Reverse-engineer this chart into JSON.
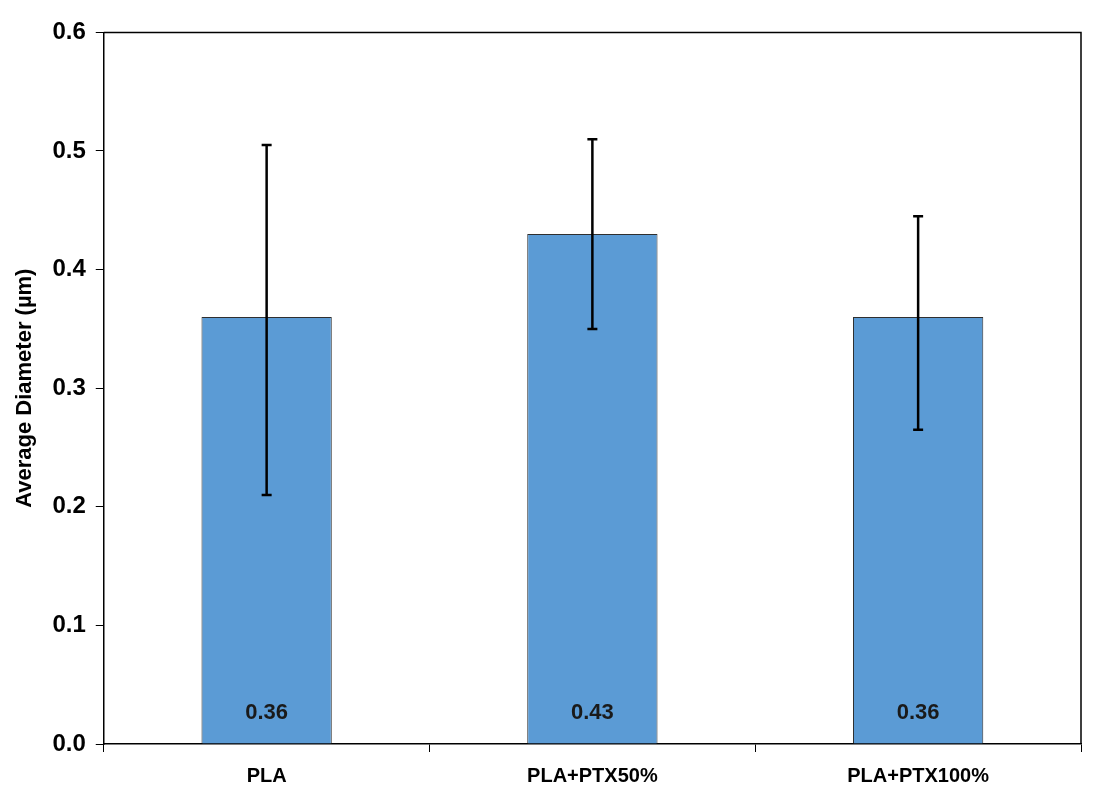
{
  "chart_data": {
    "type": "bar",
    "ylabel": "Average Diameter (µm)",
    "categories": [
      "PLA",
      "PLA+PTX50%",
      "PLA+PTX100%"
    ],
    "values": [
      0.36,
      0.43,
      0.36
    ],
    "errors": [
      [
        0.21,
        0.505
      ],
      [
        0.35,
        0.51
      ],
      [
        0.265,
        0.445
      ]
    ],
    "color": "#5b9bd5",
    "ylim": [
      0,
      0.6
    ],
    "yticks": [
      {
        "value": 0,
        "label": "0.0"
      },
      {
        "value": 0.1,
        "label": "0.1"
      },
      {
        "value": 0.2,
        "label": "0.2"
      },
      {
        "value": 0.3,
        "label": "0.3"
      },
      {
        "value": 0.4,
        "label": "0.4"
      },
      {
        "value": 0.5,
        "label": "0.5"
      },
      {
        "value": 0.6,
        "label": "0.6"
      }
    ],
    "data_labels": true,
    "grid": false,
    "legend": false
  }
}
